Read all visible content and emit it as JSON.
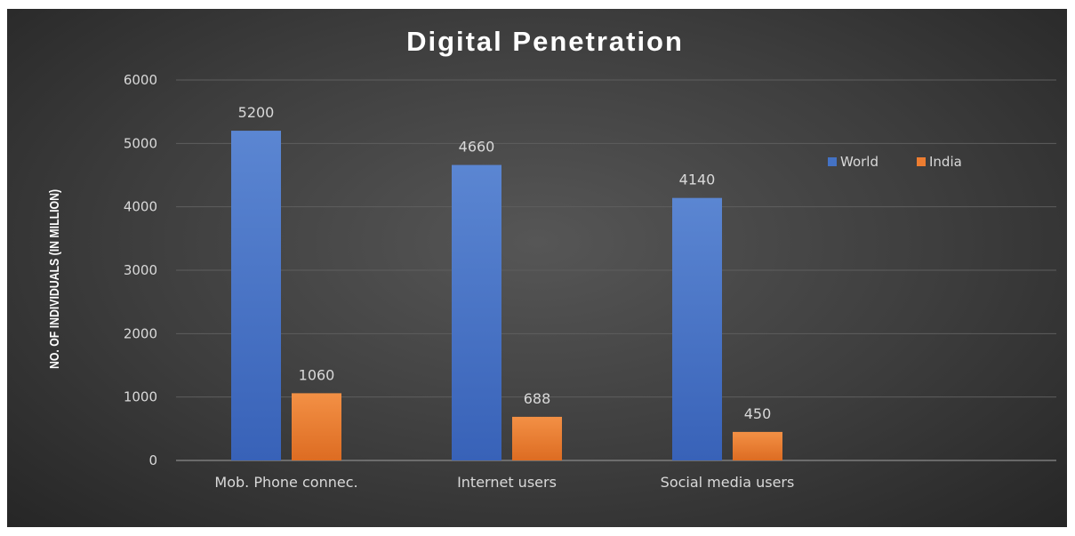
{
  "chart_data": {
    "type": "bar",
    "title": "Digital Penetration",
    "xlabel": "",
    "ylabel": "NO. OF INDIVIDUALS (IN MILLION)",
    "categories": [
      "Mob. Phone connec.",
      "Internet users",
      "Social media users"
    ],
    "series": [
      {
        "name": "World",
        "values": [
          5200,
          4660,
          4140
        ],
        "color": "#4472c4"
      },
      {
        "name": "India",
        "values": [
          1060,
          688,
          450
        ],
        "color": "#ed7d31"
      }
    ],
    "ylim": [
      0,
      6000
    ],
    "yticks": [
      0,
      1000,
      2000,
      3000,
      4000,
      5000,
      6000
    ],
    "grid": true,
    "legend_position": "top-right",
    "data_labels": true
  }
}
